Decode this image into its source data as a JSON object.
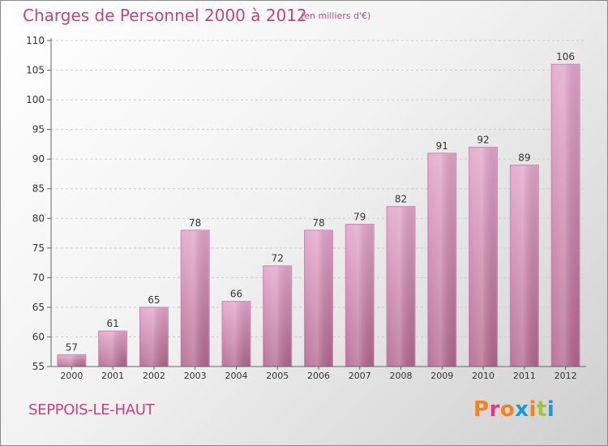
{
  "header": {
    "title": "Charges de Personnel 2000 à 2012",
    "subtitle": "(en milliers d'€)"
  },
  "footer": {
    "commune": "SEPPOIS-LE-HAUT",
    "logo_text": "Proxiti"
  },
  "colors": {
    "title": "#c2457e",
    "bar_light": "#e4a6cc",
    "bar_dark": "#b4678f",
    "logo_letters": [
      "#f58220",
      "#e8358c",
      "#f58220",
      "#1c9ad6",
      "#f58220",
      "#9bc53d",
      "#1c9ad6"
    ]
  },
  "chart_data": {
    "type": "bar",
    "title": "Charges de Personnel 2000 à 2012",
    "subtitle": "(en milliers d'€)",
    "categories": [
      "2000",
      "2001",
      "2002",
      "2003",
      "2004",
      "2005",
      "2006",
      "2007",
      "2008",
      "2009",
      "2010",
      "2011",
      "2012"
    ],
    "values": [
      57,
      61,
      65,
      78,
      66,
      72,
      78,
      79,
      82,
      91,
      92,
      89,
      106
    ],
    "ylim": [
      55,
      110
    ],
    "yticks": [
      55,
      60,
      65,
      70,
      75,
      80,
      85,
      90,
      95,
      100,
      105,
      110
    ],
    "grid": true,
    "legend": false
  }
}
